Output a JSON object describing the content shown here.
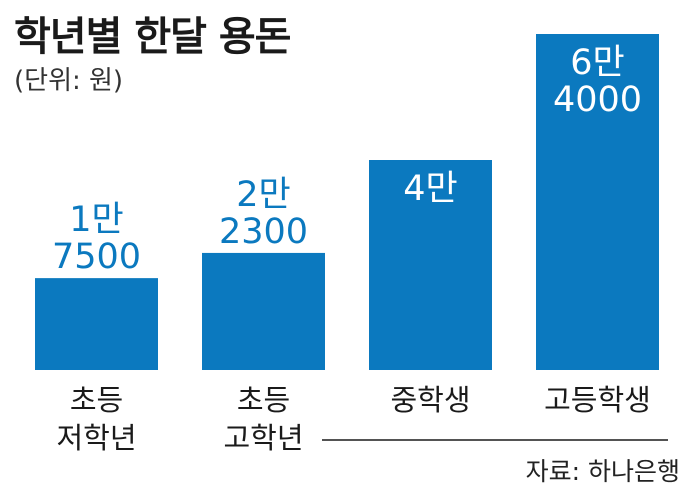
{
  "chart_data": {
    "type": "bar",
    "title": "학년별 한달 용돈",
    "subtitle": "(단위: 원)",
    "categories": [
      [
        "초등",
        "저학년"
      ],
      [
        "초등",
        "고학년"
      ],
      [
        "중학생"
      ],
      [
        "고등학생"
      ]
    ],
    "values": [
      17500,
      22300,
      40000,
      64000
    ],
    "data_labels": [
      [
        "1만",
        "7500"
      ],
      [
        "2만",
        "2300"
      ],
      [
        "4만"
      ],
      [
        "6만",
        "4000"
      ]
    ],
    "xlabel": "",
    "ylabel": "",
    "ylim": [
      0,
      64000
    ],
    "grid": false,
    "legend": "none",
    "colors": {
      "bar": "#0b79bf",
      "value_text_outside": "#0b79bf",
      "value_text_inside": "#ffffff",
      "text": "#1a1a1a"
    }
  },
  "source": "자료: 하나은행"
}
